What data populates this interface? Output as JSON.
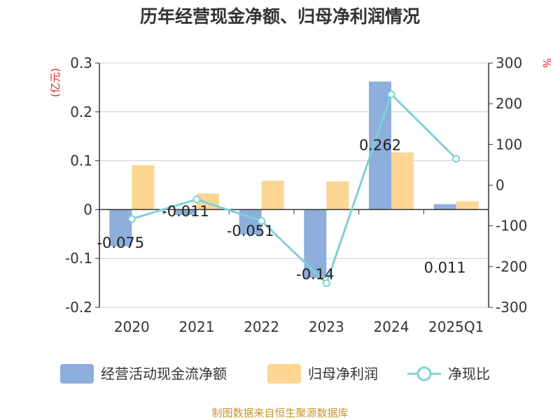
{
  "chart_data": {
    "type": "bar",
    "title": "历年经营现金净额、归母净利润情况",
    "categories": [
      "2020",
      "2021",
      "2022",
      "2023",
      "2024",
      "2025Q1"
    ],
    "series": [
      {
        "name": "经营活动现金流净额",
        "type": "bar",
        "axis": "left",
        "color": "#8eaedc",
        "values": [
          -0.075,
          -0.011,
          -0.051,
          -0.14,
          0.262,
          0.011
        ],
        "labels": [
          "-0.075",
          "-0.011",
          "-0.051",
          "-0.14",
          "0.262",
          "0.011"
        ]
      },
      {
        "name": "归母净利润",
        "type": "bar",
        "axis": "left",
        "color": "#fdd694",
        "values": [
          0.091,
          0.033,
          0.059,
          0.058,
          0.117,
          0.017
        ]
      },
      {
        "name": "净现比",
        "type": "line",
        "axis": "right",
        "color": "#7fd1d8",
        "values": [
          -83,
          -35,
          -88,
          -241,
          223,
          65
        ]
      }
    ],
    "y_left": {
      "unit": "(亿元)",
      "min": -0.2,
      "max": 0.3,
      "ticks": [
        "0.3",
        "0.2",
        "0.1",
        "0",
        "-0.1",
        "-0.2"
      ]
    },
    "y_right": {
      "unit": "%",
      "min": -300,
      "max": 300,
      "ticks": [
        "300",
        "200",
        "100",
        "0",
        "-100",
        "-200",
        "-300"
      ]
    },
    "grid": true,
    "legend_position": "bottom"
  },
  "footer": {
    "source": "制图数据来自恒生聚源数据库"
  }
}
